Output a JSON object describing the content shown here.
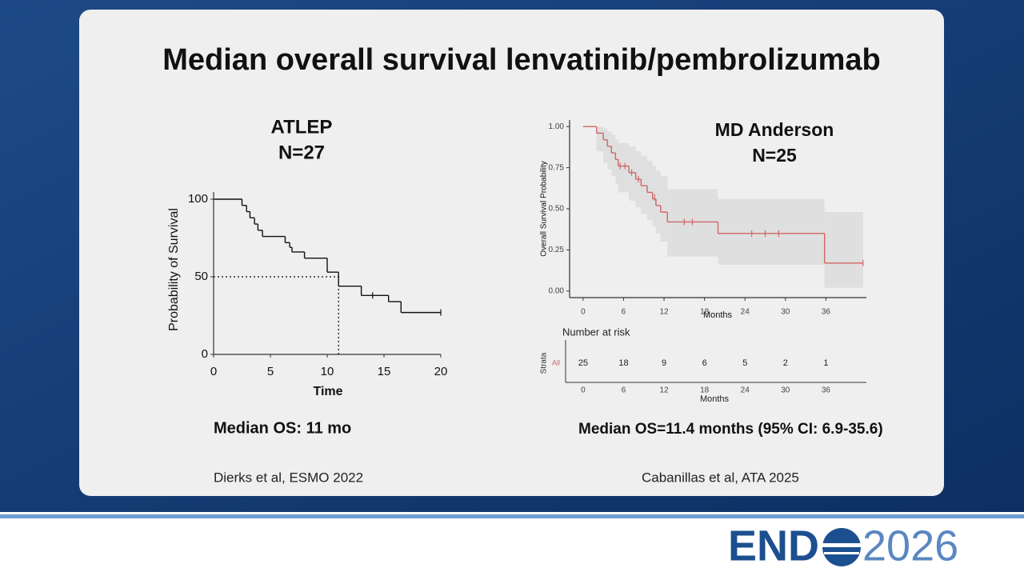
{
  "title": "Median overall survival lenvatinib/pembrolizumab",
  "logo": {
    "left": "END",
    "right": "2026"
  },
  "chart_data": [
    {
      "type": "km",
      "title": "ATLEP",
      "subtitle": "N=27",
      "xlabel": "Time",
      "ylabel": "Probability of Survival",
      "xlim": [
        0,
        20
      ],
      "ylim": [
        0,
        100
      ],
      "xticks": [
        0,
        5,
        10,
        15,
        20
      ],
      "yticks": [
        0,
        50,
        100
      ],
      "color": "#111111",
      "x": [
        0,
        2.5,
        2.9,
        3.2,
        3.6,
        3.9,
        4.3,
        6.3,
        6.7,
        6.9,
        8,
        10,
        11,
        13,
        15.4,
        16.5,
        20
      ],
      "values": [
        100,
        96,
        92,
        88,
        84,
        80,
        76,
        72,
        69,
        66,
        62,
        53,
        44,
        38,
        34,
        27,
        27
      ],
      "censored": {
        "x": [
          14,
          20
        ],
        "values": [
          38,
          27
        ]
      },
      "median": {
        "x": 11,
        "y": 50
      },
      "annotation": "Median OS: 11 mo",
      "citation": "Dierks et al, ESMO 2022"
    },
    {
      "type": "km",
      "title": "MD Anderson",
      "subtitle": "N=25",
      "xlabel": "Months",
      "ylabel": "Overall Survival Probability",
      "xlim": [
        -2,
        42
      ],
      "ylim": [
        -0.04,
        1.04
      ],
      "xticks": [
        0,
        6,
        12,
        18,
        24,
        30,
        36
      ],
      "yticks": [
        {
          "value": 0,
          "label": "0.00"
        },
        {
          "value": 0.25,
          "label": "0.25"
        },
        {
          "value": 0.5,
          "label": "0.50"
        },
        {
          "value": 0.75,
          "label": "0.75"
        },
        {
          "value": 1,
          "label": "1.00"
        }
      ],
      "color": "#d06666",
      "band_color": "#dcdcdc",
      "x": [
        0,
        2,
        3,
        3.6,
        4.2,
        4.8,
        5.2,
        6.8,
        7.8,
        8.6,
        9.5,
        10.3,
        10.8,
        11.5,
        12.5,
        20,
        35.8,
        41.5
      ],
      "values": [
        1,
        0.96,
        0.92,
        0.88,
        0.84,
        0.8,
        0.76,
        0.72,
        0.68,
        0.64,
        0.6,
        0.56,
        0.52,
        0.48,
        0.42,
        0.35,
        0.17,
        0.17
      ],
      "upper": [
        1,
        1,
        0.99,
        0.97,
        0.95,
        0.92,
        0.9,
        0.88,
        0.85,
        0.82,
        0.79,
        0.76,
        0.73,
        0.7,
        0.62,
        0.56,
        0.48,
        0.48
      ],
      "lower": [
        1,
        0.85,
        0.78,
        0.74,
        0.7,
        0.65,
        0.6,
        0.55,
        0.51,
        0.47,
        0.43,
        0.39,
        0.35,
        0.3,
        0.21,
        0.16,
        0.02,
        0.02
      ],
      "censored": {
        "x": [
          5.5,
          6.2,
          7.2,
          8.2,
          10.6,
          15,
          16.2,
          25,
          27,
          29,
          41.5
        ],
        "values": [
          0.76,
          0.76,
          0.72,
          0.68,
          0.57,
          0.42,
          0.42,
          0.35,
          0.35,
          0.35,
          0.17
        ]
      },
      "risk_table": {
        "title": "Number at risk",
        "strata_label": "Strata",
        "strata": "All",
        "times": [
          0,
          6,
          12,
          18,
          24,
          30,
          36
        ],
        "counts": [
          25,
          18,
          9,
          6,
          5,
          2,
          1
        ],
        "xlabel": "Months"
      },
      "annotation": "Median OS=11.4 months (95% CI: 6.9-35.6)",
      "citation": "Cabanillas et al, ATA 2025"
    }
  ]
}
